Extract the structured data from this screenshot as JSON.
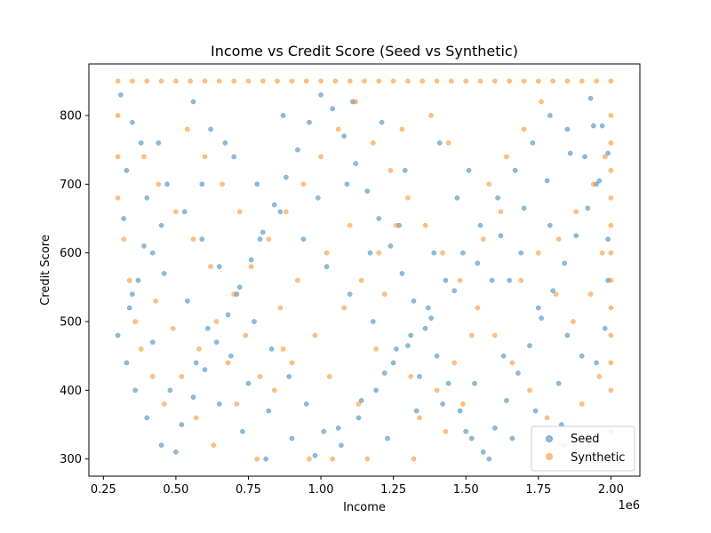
{
  "chart_data": {
    "type": "scatter",
    "title": "Income vs Credit Score (Seed vs Synthetic)",
    "xlabel": "Income",
    "ylabel": "Credit Score",
    "x_offset_label": "1e6",
    "xlim": [
      200000,
      2100000
    ],
    "ylim": [
      275,
      875
    ],
    "x_ticks": [
      250000,
      500000,
      750000,
      1000000,
      1250000,
      1500000,
      1750000,
      2000000
    ],
    "x_tick_labels": [
      "0.25",
      "0.50",
      "0.75",
      "1.00",
      "1.25",
      "1.50",
      "1.75",
      "2.00"
    ],
    "y_ticks": [
      300,
      400,
      500,
      600,
      700,
      800
    ],
    "y_tick_labels": [
      "300",
      "400",
      "500",
      "600",
      "700",
      "800"
    ],
    "grid": false,
    "legend_position": "bottom-right",
    "series": [
      {
        "name": "Seed",
        "color": "#1f77b4",
        "points": [
          [
            310000,
            830
          ],
          [
            350000,
            790
          ],
          [
            380000,
            760
          ],
          [
            330000,
            720
          ],
          [
            400000,
            680
          ],
          [
            450000,
            640
          ],
          [
            420000,
            600
          ],
          [
            370000,
            560
          ],
          [
            340000,
            520
          ],
          [
            300000,
            480
          ],
          [
            330000,
            440
          ],
          [
            360000,
            400
          ],
          [
            400000,
            360
          ],
          [
            450000,
            320
          ],
          [
            500000,
            310
          ],
          [
            520000,
            350
          ],
          [
            560000,
            390
          ],
          [
            600000,
            430
          ],
          [
            640000,
            470
          ],
          [
            680000,
            510
          ],
          [
            720000,
            550
          ],
          [
            760000,
            590
          ],
          [
            800000,
            630
          ],
          [
            840000,
            670
          ],
          [
            880000,
            710
          ],
          [
            920000,
            750
          ],
          [
            960000,
            790
          ],
          [
            1000000,
            830
          ],
          [
            1040000,
            810
          ],
          [
            1080000,
            770
          ],
          [
            1120000,
            730
          ],
          [
            1160000,
            690
          ],
          [
            1200000,
            650
          ],
          [
            1240000,
            610
          ],
          [
            1280000,
            570
          ],
          [
            1320000,
            530
          ],
          [
            1360000,
            490
          ],
          [
            1400000,
            450
          ],
          [
            1440000,
            410
          ],
          [
            1480000,
            370
          ],
          [
            1520000,
            330
          ],
          [
            1560000,
            310
          ],
          [
            1600000,
            345
          ],
          [
            1640000,
            385
          ],
          [
            1680000,
            425
          ],
          [
            1720000,
            465
          ],
          [
            1760000,
            505
          ],
          [
            1800000,
            545
          ],
          [
            1840000,
            585
          ],
          [
            1880000,
            625
          ],
          [
            1920000,
            665
          ],
          [
            1960000,
            705
          ],
          [
            1990000,
            745
          ],
          [
            1970000,
            785
          ],
          [
            1930000,
            825
          ],
          [
            560000,
            820
          ],
          [
            620000,
            780
          ],
          [
            700000,
            740
          ],
          [
            780000,
            700
          ],
          [
            860000,
            660
          ],
          [
            940000,
            620
          ],
          [
            1020000,
            580
          ],
          [
            1100000,
            540
          ],
          [
            1180000,
            500
          ],
          [
            1260000,
            460
          ],
          [
            1340000,
            420
          ],
          [
            1420000,
            380
          ],
          [
            1500000,
            340
          ],
          [
            1580000,
            300
          ],
          [
            1660000,
            330
          ],
          [
            1740000,
            370
          ],
          [
            1820000,
            410
          ],
          [
            1900000,
            450
          ],
          [
            1980000,
            490
          ],
          [
            470000,
            700
          ],
          [
            530000,
            660
          ],
          [
            590000,
            620
          ],
          [
            650000,
            580
          ],
          [
            710000,
            540
          ],
          [
            770000,
            500
          ],
          [
            830000,
            460
          ],
          [
            890000,
            420
          ],
          [
            950000,
            380
          ],
          [
            1010000,
            340
          ],
          [
            1070000,
            320
          ],
          [
            1130000,
            360
          ],
          [
            1190000,
            400
          ],
          [
            1250000,
            440
          ],
          [
            1310000,
            480
          ],
          [
            1370000,
            520
          ],
          [
            1430000,
            560
          ],
          [
            1490000,
            600
          ],
          [
            1550000,
            640
          ],
          [
            1610000,
            680
          ],
          [
            1670000,
            720
          ],
          [
            1730000,
            760
          ],
          [
            1790000,
            800
          ],
          [
            1850000,
            780
          ],
          [
            1910000,
            740
          ],
          [
            1950000,
            700
          ],
          [
            320000,
            650
          ],
          [
            390000,
            610
          ],
          [
            460000,
            570
          ],
          [
            540000,
            530
          ],
          [
            610000,
            490
          ],
          [
            690000,
            450
          ],
          [
            750000,
            410
          ],
          [
            820000,
            370
          ],
          [
            900000,
            330
          ],
          [
            980000,
            305
          ],
          [
            1060000,
            345
          ],
          [
            1140000,
            385
          ],
          [
            1220000,
            425
          ],
          [
            1300000,
            465
          ],
          [
            1380000,
            505
          ],
          [
            1460000,
            545
          ],
          [
            1540000,
            585
          ],
          [
            1620000,
            625
          ],
          [
            1700000,
            665
          ],
          [
            1780000,
            705
          ],
          [
            1860000,
            745
          ],
          [
            1940000,
            785
          ],
          [
            1110000,
            820
          ],
          [
            1210000,
            790
          ],
          [
            1410000,
            760
          ],
          [
            1510000,
            720
          ],
          [
            1650000,
            560
          ],
          [
            1750000,
            520
          ],
          [
            1850000,
            480
          ],
          [
            1950000,
            440
          ],
          [
            1170000,
            600
          ],
          [
            1270000,
            640
          ],
          [
            1470000,
            680
          ],
          [
            870000,
            800
          ],
          [
            670000,
            760
          ],
          [
            570000,
            440
          ],
          [
            480000,
            400
          ],
          [
            420000,
            470
          ],
          [
            350000,
            540
          ],
          [
            650000,
            380
          ],
          [
            730000,
            340
          ],
          [
            810000,
            300
          ],
          [
            1230000,
            330
          ],
          [
            1330000,
            370
          ],
          [
            1530000,
            410
          ],
          [
            1630000,
            450
          ],
          [
            1830000,
            350
          ],
          [
            1880000,
            310
          ],
          [
            1990000,
            560
          ],
          [
            1990000,
            620
          ],
          [
            1790000,
            640
          ],
          [
            1690000,
            600
          ],
          [
            1590000,
            560
          ],
          [
            1390000,
            600
          ],
          [
            1290000,
            720
          ],
          [
            1090000,
            700
          ],
          [
            990000,
            680
          ],
          [
            790000,
            620
          ],
          [
            590000,
            700
          ],
          [
            440000,
            760
          ]
        ]
      },
      {
        "name": "Synthetic",
        "color": "#ff7f0e",
        "points": [
          [
            300000,
            850
          ],
          [
            350000,
            850
          ],
          [
            400000,
            850
          ],
          [
            450000,
            850
          ],
          [
            500000,
            850
          ],
          [
            550000,
            850
          ],
          [
            600000,
            850
          ],
          [
            650000,
            850
          ],
          [
            700000,
            850
          ],
          [
            750000,
            850
          ],
          [
            800000,
            850
          ],
          [
            850000,
            850
          ],
          [
            900000,
            850
          ],
          [
            950000,
            850
          ],
          [
            1000000,
            850
          ],
          [
            1050000,
            850
          ],
          [
            1100000,
            850
          ],
          [
            1150000,
            850
          ],
          [
            1200000,
            850
          ],
          [
            1250000,
            850
          ],
          [
            1300000,
            850
          ],
          [
            1350000,
            850
          ],
          [
            1400000,
            850
          ],
          [
            1450000,
            850
          ],
          [
            1500000,
            850
          ],
          [
            1550000,
            850
          ],
          [
            1600000,
            850
          ],
          [
            1650000,
            850
          ],
          [
            1700000,
            850
          ],
          [
            1750000,
            850
          ],
          [
            1800000,
            850
          ],
          [
            1850000,
            850
          ],
          [
            1900000,
            850
          ],
          [
            1950000,
            850
          ],
          [
            2000000,
            850
          ],
          [
            2000000,
            800
          ],
          [
            2000000,
            760
          ],
          [
            2000000,
            720
          ],
          [
            2000000,
            680
          ],
          [
            2000000,
            640
          ],
          [
            2000000,
            600
          ],
          [
            2000000,
            560
          ],
          [
            2000000,
            520
          ],
          [
            2000000,
            480
          ],
          [
            2000000,
            440
          ],
          [
            2000000,
            400
          ],
          [
            2000000,
            340
          ],
          [
            300000,
            800
          ],
          [
            300000,
            740
          ],
          [
            300000,
            680
          ],
          [
            320000,
            620
          ],
          [
            340000,
            560
          ],
          [
            360000,
            500
          ],
          [
            380000,
            460
          ],
          [
            420000,
            420
          ],
          [
            460000,
            380
          ],
          [
            520000,
            420
          ],
          [
            580000,
            460
          ],
          [
            640000,
            500
          ],
          [
            700000,
            540
          ],
          [
            760000,
            580
          ],
          [
            820000,
            620
          ],
          [
            880000,
            660
          ],
          [
            940000,
            700
          ],
          [
            1000000,
            740
          ],
          [
            1060000,
            780
          ],
          [
            1120000,
            820
          ],
          [
            1180000,
            760
          ],
          [
            1240000,
            720
          ],
          [
            1300000,
            680
          ],
          [
            1360000,
            640
          ],
          [
            1420000,
            600
          ],
          [
            1480000,
            560
          ],
          [
            1540000,
            520
          ],
          [
            1600000,
            480
          ],
          [
            1660000,
            440
          ],
          [
            1720000,
            400
          ],
          [
            1780000,
            360
          ],
          [
            1840000,
            320
          ],
          [
            1900000,
            380
          ],
          [
            1960000,
            420
          ],
          [
            540000,
            780
          ],
          [
            600000,
            740
          ],
          [
            660000,
            700
          ],
          [
            720000,
            660
          ],
          [
            780000,
            300
          ],
          [
            960000,
            300
          ],
          [
            1040000,
            300
          ],
          [
            1160000,
            300
          ],
          [
            1320000,
            300
          ],
          [
            840000,
            400
          ],
          [
            900000,
            440
          ],
          [
            980000,
            480
          ],
          [
            1080000,
            520
          ],
          [
            1140000,
            560
          ],
          [
            1200000,
            600
          ],
          [
            1260000,
            640
          ],
          [
            1340000,
            360
          ],
          [
            1400000,
            400
          ],
          [
            1460000,
            440
          ],
          [
            1520000,
            480
          ],
          [
            1580000,
            700
          ],
          [
            1640000,
            740
          ],
          [
            1700000,
            780
          ],
          [
            1760000,
            820
          ],
          [
            1820000,
            620
          ],
          [
            1880000,
            660
          ],
          [
            1940000,
            700
          ],
          [
            1980000,
            740
          ],
          [
            1620000,
            660
          ],
          [
            1560000,
            620
          ],
          [
            1440000,
            760
          ],
          [
            1380000,
            800
          ],
          [
            1280000,
            780
          ],
          [
            1220000,
            540
          ],
          [
            1100000,
            640
          ],
          [
            1020000,
            600
          ],
          [
            920000,
            560
          ],
          [
            860000,
            520
          ],
          [
            740000,
            480
          ],
          [
            680000,
            440
          ],
          [
            620000,
            580
          ],
          [
            560000,
            620
          ],
          [
            500000,
            660
          ],
          [
            440000,
            700
          ],
          [
            390000,
            740
          ],
          [
            430000,
            530
          ],
          [
            490000,
            490
          ],
          [
            570000,
            360
          ],
          [
            630000,
            320
          ],
          [
            710000,
            380
          ],
          [
            790000,
            420
          ],
          [
            870000,
            460
          ],
          [
            1190000,
            460
          ],
          [
            1310000,
            420
          ],
          [
            1430000,
            340
          ],
          [
            1490000,
            380
          ],
          [
            1690000,
            560
          ],
          [
            1750000,
            600
          ],
          [
            1810000,
            540
          ],
          [
            1870000,
            500
          ],
          [
            1930000,
            540
          ],
          [
            1970000,
            600
          ],
          [
            1030000,
            420
          ],
          [
            1130000,
            380
          ]
        ]
      }
    ]
  }
}
